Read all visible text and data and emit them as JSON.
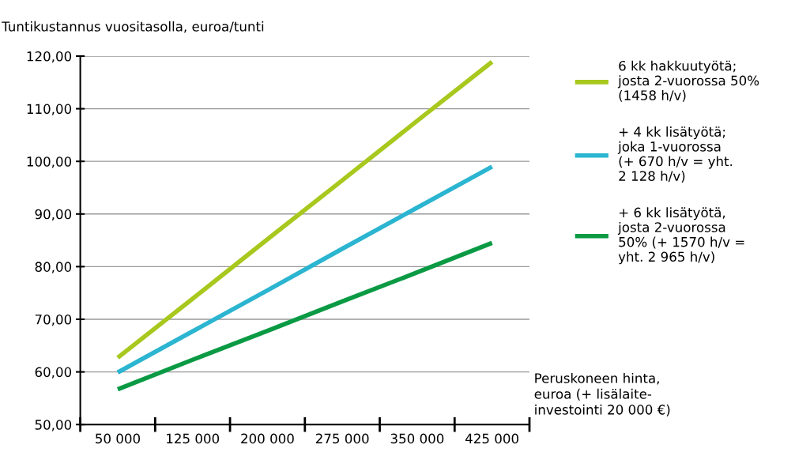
{
  "chart_data": {
    "type": "line",
    "ylabel": "Tuntikustannus vuositasolla, euroa/tunti",
    "xlabel": "Peruskoneen hinta,\neuroa (+ lisälaite-\ninvestointi 20 000 €)",
    "categories": [
      "50 000",
      "125 000",
      "200 000",
      "275 000",
      "350 000",
      "425 000"
    ],
    "series": [
      {
        "name": "6 kk hakkuutyötä;\njosta 2-vuorossa 50%\n(1458 h/v)",
        "color": "#a8c81e",
        "values": [
          62.7,
          73.9,
          85.2,
          96.4,
          107.7,
          118.9
        ]
      },
      {
        "name": "+ 4 kk lisätyötä;\njoka 1-vuorossa\n(+ 670 h/v = yht.\n2 128 h/v)",
        "color": "#2bb5d0",
        "values": [
          59.9,
          67.7,
          75.5,
          83.4,
          91.2,
          99.0
        ]
      },
      {
        "name": "+ 6 kk lisätyötä,\njosta 2-vuorossa\n50% (+ 1570 h/v =\nyht. 2 965 h/v)",
        "color": "#0a9a44",
        "values": [
          56.7,
          62.3,
          67.8,
          73.4,
          78.9,
          84.5
        ]
      }
    ],
    "ylim": [
      50,
      120
    ],
    "yticks": [
      {
        "value": 50,
        "label": "50,00"
      },
      {
        "value": 60,
        "label": "60,00"
      },
      {
        "value": 70,
        "label": "70,00"
      },
      {
        "value": 80,
        "label": "80,00"
      },
      {
        "value": 90,
        "label": "90,00"
      },
      {
        "value": 100,
        "label": "100,00"
      },
      {
        "value": 110,
        "label": "110,00"
      },
      {
        "value": 120,
        "label": "120,00"
      }
    ],
    "grid": "y",
    "legend": "right",
    "marker": "none",
    "line_style": "solid"
  }
}
